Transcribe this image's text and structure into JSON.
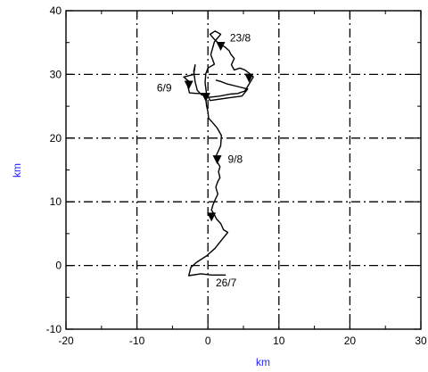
{
  "chart_data": {
    "type": "line",
    "title": "",
    "xlabel": "km",
    "ylabel": "km",
    "xlim": [
      -20,
      30
    ],
    "ylim": [
      -10,
      40
    ],
    "xticks": [
      -20,
      -10,
      0,
      10,
      20,
      30
    ],
    "yticks": [
      -10,
      0,
      10,
      20,
      30,
      40
    ],
    "grid": true,
    "series": [
      {
        "points": [
          [
            2.5,
            -1.5
          ],
          [
            0.5,
            -1.5
          ],
          [
            -1.0,
            -1.3
          ],
          [
            -2.7,
            -1.6
          ],
          [
            -2.4,
            -0.3
          ],
          [
            -1.6,
            0.5
          ],
          [
            -0.2,
            1.5
          ],
          [
            1.0,
            2.7
          ],
          [
            2.0,
            4.1
          ],
          [
            2.8,
            5.2
          ],
          [
            2.2,
            5.6
          ],
          [
            1.8,
            6.6
          ],
          [
            1.2,
            7.3
          ],
          [
            0.9,
            8.0
          ],
          [
            0.5,
            8.7
          ],
          [
            0.7,
            9.5
          ],
          [
            1.0,
            10.3
          ],
          [
            1.4,
            11.2
          ],
          [
            1.1,
            12.3
          ],
          [
            1.4,
            13.2
          ],
          [
            1.7,
            13.8
          ],
          [
            1.5,
            14.7
          ],
          [
            1.7,
            15.5
          ],
          [
            1.3,
            16.3
          ],
          [
            1.1,
            17.1
          ],
          [
            1.4,
            17.8
          ],
          [
            1.8,
            18.8
          ],
          [
            1.9,
            20.4
          ],
          [
            1.3,
            21.6
          ],
          [
            0.6,
            22.5
          ],
          [
            0.1,
            23.1
          ],
          [
            0.0,
            24.1
          ],
          [
            -0.2,
            25.1
          ],
          [
            -0.3,
            26.3
          ],
          [
            -0.5,
            27.0
          ],
          [
            -1.5,
            27.0
          ],
          [
            -2.6,
            27.1
          ],
          [
            -2.8,
            28.0
          ],
          [
            -2.4,
            28.7
          ],
          [
            -2.9,
            29.1
          ],
          [
            -3.4,
            29.6
          ],
          [
            -2.0,
            30.0
          ],
          [
            -1.8,
            31.5
          ],
          [
            -2.0,
            30.5
          ],
          [
            -1.8,
            28.8
          ],
          [
            -1.5,
            27.5
          ],
          [
            -0.9,
            26.8
          ],
          [
            0.2,
            26.4
          ],
          [
            1.7,
            26.6
          ],
          [
            3.1,
            26.9
          ],
          [
            4.2,
            27.0
          ],
          [
            5.2,
            27.4
          ],
          [
            5.8,
            28.5
          ],
          [
            6.4,
            29.6
          ],
          [
            5.8,
            30.2
          ],
          [
            5.2,
            30.7
          ],
          [
            4.5,
            31.0
          ],
          [
            3.7,
            30.7
          ],
          [
            3.3,
            31.5
          ],
          [
            3.7,
            32.5
          ],
          [
            3.2,
            33.2
          ],
          [
            3.0,
            33.7
          ],
          [
            2.4,
            34.3
          ],
          [
            1.6,
            34.8
          ],
          [
            0.9,
            35.5
          ],
          [
            0.3,
            36.3
          ],
          [
            1.0,
            36.8
          ],
          [
            1.8,
            36.3
          ],
          [
            0.9,
            35.1
          ],
          [
            0.4,
            33.1
          ],
          [
            0.9,
            31.6
          ],
          [
            0.0,
            31.0
          ],
          [
            -0.3,
            30.1
          ],
          [
            -0.4,
            28.7
          ],
          [
            -0.2,
            27.0
          ],
          [
            0.3,
            25.9
          ],
          [
            2.8,
            26.3
          ],
          [
            4.8,
            26.6
          ],
          [
            5.6,
            27.7
          ],
          [
            4.2,
            28.1
          ],
          [
            2.7,
            28.5
          ],
          [
            1.8,
            28.9
          ],
          [
            1.1,
            29.1
          ]
        ],
        "color": "#000000"
      }
    ],
    "markers": [
      {
        "x": 1.8,
        "y": 34.4
      },
      {
        "x": 5.8,
        "y": 29.4
      },
      {
        "x": -2.7,
        "y": 28.3
      },
      {
        "x": -0.3,
        "y": 26.4
      },
      {
        "x": 1.3,
        "y": 16.6
      },
      {
        "x": 0.5,
        "y": 7.6
      }
    ],
    "annotations": [
      {
        "text": "23/8",
        "x": 3.1,
        "y": 35.7
      },
      {
        "text": "6/9",
        "x": -7.2,
        "y": 27.9
      },
      {
        "text": "9/8",
        "x": 2.8,
        "y": 16.7
      },
      {
        "text": "26/7",
        "x": 1.1,
        "y": -2.7
      }
    ],
    "colors": {
      "axis_label": "#2222ff",
      "line": "#000000",
      "grid": "#000000"
    }
  }
}
